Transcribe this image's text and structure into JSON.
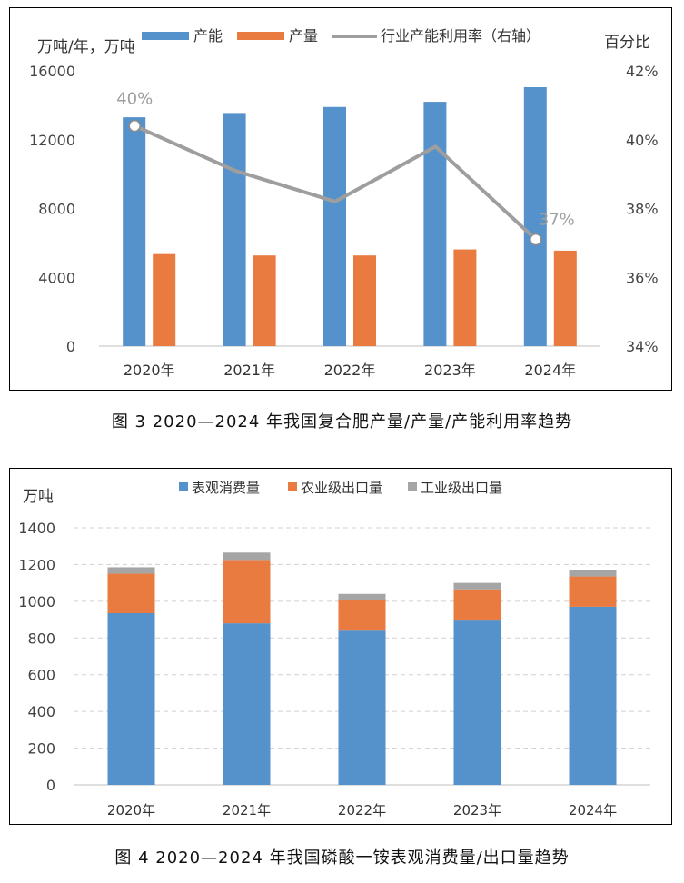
{
  "chart_data": [
    {
      "type": "bar",
      "categories": [
        "2020年",
        "2021年",
        "2022年",
        "2023年",
        "2024年"
      ],
      "series": [
        {
          "name": "产能",
          "kind": "bar",
          "values": [
            13300,
            13550,
            13900,
            14200,
            15050
          ],
          "color": "#5591CB"
        },
        {
          "name": "产量",
          "kind": "bar",
          "values": [
            5350,
            5270,
            5270,
            5620,
            5550
          ],
          "color": "#E97B40"
        },
        {
          "name": "行业产能利用率（右轴）",
          "kind": "line",
          "axis": "right",
          "values": [
            40.4,
            39.1,
            38.2,
            39.8,
            37.1
          ],
          "color": "#9E9E9E"
        }
      ],
      "data_labels": [
        {
          "series": "行业产能利用率（右轴）",
          "index": 0,
          "text": "40%"
        },
        {
          "series": "行业产能利用率（右轴）",
          "index": 4,
          "text": "37%"
        }
      ],
      "ylabel": "万吨/年，万吨",
      "ylabel_right": "百分比",
      "ylim": [
        0,
        16000
      ],
      "yticks": [
        "0",
        "4000",
        "8000",
        "12000",
        "16000"
      ],
      "ylim_right": [
        34,
        42
      ],
      "yticks_right": [
        "34%",
        "36%",
        "38%",
        "40%",
        "42%"
      ],
      "legend_position": "top",
      "grid": false,
      "caption": "图 3  2020—2024 年我国复合肥产量/产量/产能利用率趋势"
    },
    {
      "type": "bar",
      "stacked": true,
      "categories": [
        "2020年",
        "2021年",
        "2022年",
        "2023年",
        "2024年"
      ],
      "series": [
        {
          "name": "表观消费量",
          "values": [
            935,
            880,
            840,
            895,
            970
          ],
          "color": "#5591CB"
        },
        {
          "name": "农业级出口量",
          "values": [
            215,
            345,
            165,
            170,
            165
          ],
          "color": "#E97B40"
        },
        {
          "name": "工业级出口量",
          "values": [
            35,
            40,
            35,
            35,
            35
          ],
          "color": "#A5A5A5"
        }
      ],
      "ylabel": "万吨",
      "ylim": [
        0,
        1400
      ],
      "yticks": [
        "0",
        "200",
        "400",
        "600",
        "800",
        "1000",
        "1200",
        "1400"
      ],
      "legend_position": "top",
      "grid": true,
      "caption": "图 4  2020—2024 年我国磷酸一铵表观消费量/出口量趋势"
    }
  ]
}
